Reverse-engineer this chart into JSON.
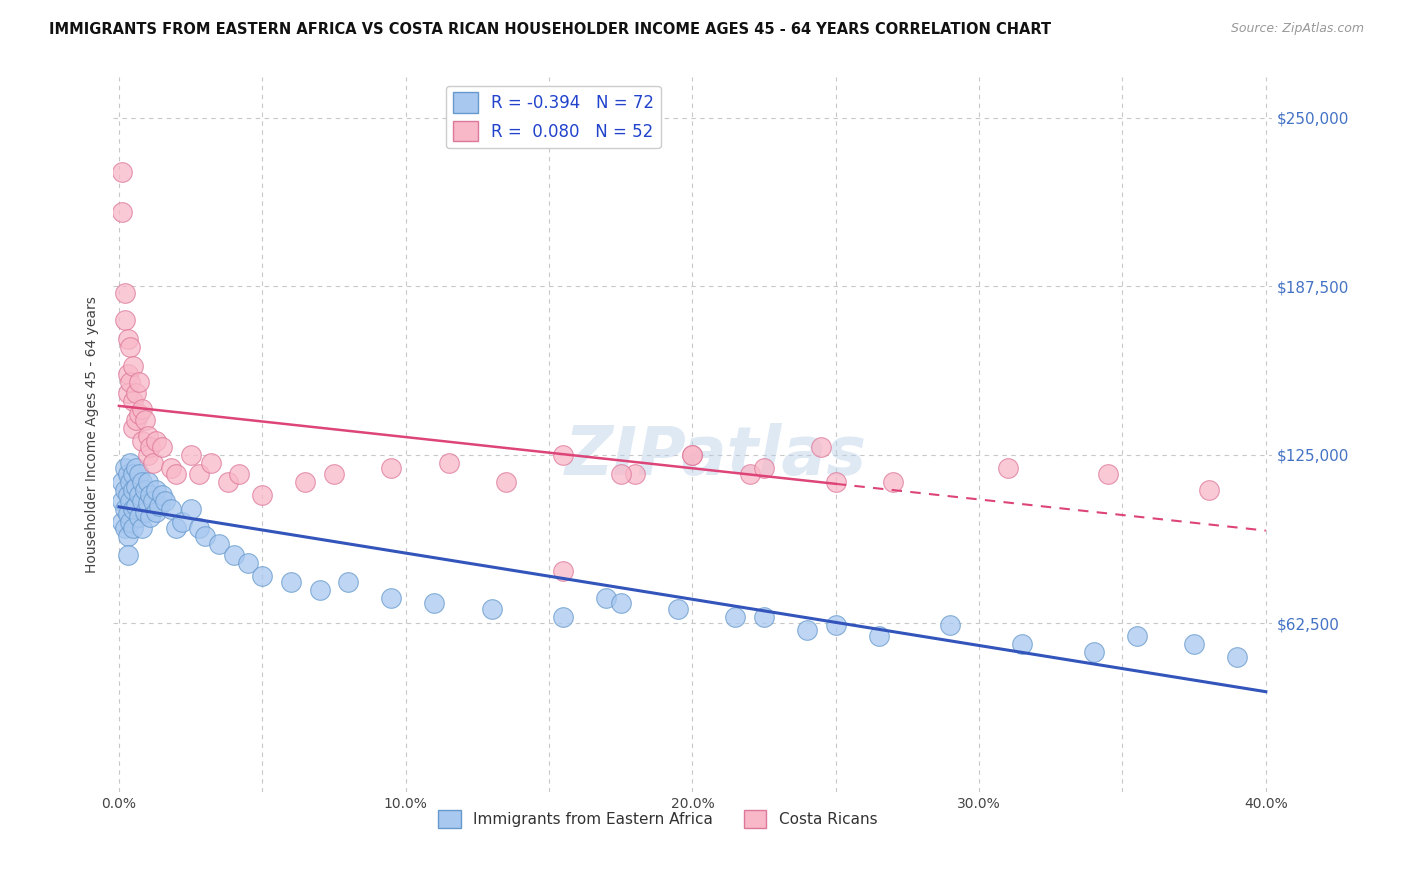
{
  "title": "IMMIGRANTS FROM EASTERN AFRICA VS COSTA RICAN HOUSEHOLDER INCOME AGES 45 - 64 YEARS CORRELATION CHART",
  "source": "Source: ZipAtlas.com",
  "ylabel": "Householder Income Ages 45 - 64 years",
  "xlim": [
    -0.002,
    0.402
  ],
  "ylim": [
    0,
    265000
  ],
  "xticks": [
    0.0,
    0.05,
    0.1,
    0.15,
    0.2,
    0.25,
    0.3,
    0.35,
    0.4
  ],
  "xticklabels": [
    "0.0%",
    "",
    "10.0%",
    "",
    "20.0%",
    "",
    "30.0%",
    "",
    "40.0%"
  ],
  "yticks": [
    0,
    62500,
    125000,
    187500,
    250000
  ],
  "yticklabels": [
    "",
    "$62,500",
    "$125,000",
    "$187,500",
    "$250,000"
  ],
  "ytick_color": "#4472c4",
  "grid_color": "#c8c8c8",
  "background_color": "#ffffff",
  "series1_color": "#a8c8f0",
  "series1_edge": "#6699cc",
  "series2_color": "#f8b8c8",
  "series2_edge": "#dd7799",
  "trendline1_color": "#3355bb",
  "trendline2_color": "#dd4477",
  "R1": -0.394,
  "N1": 72,
  "R2": 0.08,
  "N2": 52,
  "legend_label1": "Immigrants from Eastern Africa",
  "legend_label2": "Costa Ricans",
  "title_fontsize": 10.5,
  "source_fontsize": 9,
  "scatter1_x": [
    0.001,
    0.001,
    0.001,
    0.002,
    0.002,
    0.002,
    0.002,
    0.003,
    0.003,
    0.003,
    0.003,
    0.003,
    0.004,
    0.004,
    0.004,
    0.004,
    0.005,
    0.005,
    0.005,
    0.005,
    0.006,
    0.006,
    0.006,
    0.007,
    0.007,
    0.007,
    0.008,
    0.008,
    0.008,
    0.009,
    0.009,
    0.01,
    0.01,
    0.011,
    0.011,
    0.012,
    0.013,
    0.013,
    0.014,
    0.015,
    0.016,
    0.018,
    0.02,
    0.022,
    0.025,
    0.028,
    0.03,
    0.035,
    0.04,
    0.045,
    0.05,
    0.06,
    0.07,
    0.08,
    0.095,
    0.11,
    0.13,
    0.155,
    0.17,
    0.195,
    0.215,
    0.24,
    0.265,
    0.29,
    0.315,
    0.34,
    0.355,
    0.375,
    0.39,
    0.175,
    0.225,
    0.25
  ],
  "scatter1_y": [
    115000,
    108000,
    100000,
    120000,
    112000,
    105000,
    98000,
    118000,
    110000,
    103000,
    95000,
    88000,
    122000,
    115000,
    108000,
    100000,
    118000,
    112000,
    105000,
    98000,
    120000,
    113000,
    106000,
    118000,
    110000,
    102000,
    115000,
    108000,
    98000,
    112000,
    104000,
    115000,
    107000,
    110000,
    102000,
    108000,
    112000,
    104000,
    106000,
    110000,
    108000,
    105000,
    98000,
    100000,
    105000,
    98000,
    95000,
    92000,
    88000,
    85000,
    80000,
    78000,
    75000,
    78000,
    72000,
    70000,
    68000,
    65000,
    72000,
    68000,
    65000,
    60000,
    58000,
    62000,
    55000,
    52000,
    58000,
    55000,
    50000,
    70000,
    65000,
    62000
  ],
  "scatter2_x": [
    0.001,
    0.001,
    0.002,
    0.002,
    0.003,
    0.003,
    0.003,
    0.004,
    0.004,
    0.005,
    0.005,
    0.005,
    0.006,
    0.006,
    0.007,
    0.007,
    0.008,
    0.008,
    0.009,
    0.01,
    0.01,
    0.011,
    0.012,
    0.013,
    0.015,
    0.018,
    0.02,
    0.025,
    0.028,
    0.032,
    0.038,
    0.042,
    0.05,
    0.065,
    0.075,
    0.095,
    0.115,
    0.135,
    0.155,
    0.18,
    0.2,
    0.22,
    0.245,
    0.27,
    0.31,
    0.345,
    0.38,
    0.155,
    0.175,
    0.2,
    0.225,
    0.25
  ],
  "scatter2_y": [
    230000,
    215000,
    185000,
    175000,
    168000,
    155000,
    148000,
    165000,
    152000,
    158000,
    145000,
    135000,
    148000,
    138000,
    152000,
    140000,
    142000,
    130000,
    138000,
    132000,
    125000,
    128000,
    122000,
    130000,
    128000,
    120000,
    118000,
    125000,
    118000,
    122000,
    115000,
    118000,
    110000,
    115000,
    118000,
    120000,
    122000,
    115000,
    125000,
    118000,
    125000,
    118000,
    128000,
    115000,
    120000,
    118000,
    112000,
    82000,
    118000,
    125000,
    120000,
    115000
  ]
}
